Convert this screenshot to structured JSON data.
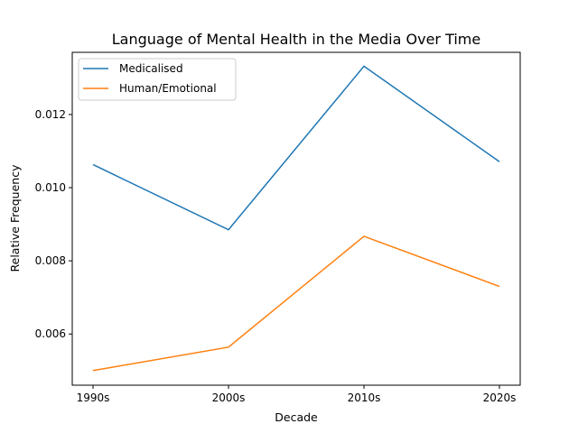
{
  "chart_data": {
    "type": "line",
    "title": "Language of Mental Health in the Media Over Time",
    "xlabel": "Decade",
    "ylabel": "Relative Frequency",
    "categories": [
      "1990s",
      "2000s",
      "2010s",
      "2020s"
    ],
    "ylim": [
      0.0046,
      0.0137
    ],
    "yticks": [
      0.006,
      0.008,
      0.01,
      0.012
    ],
    "ytick_labels": [
      "0.006",
      "0.008",
      "0.010",
      "0.012"
    ],
    "grid": false,
    "legend_position": "top-left",
    "series": [
      {
        "name": "Medicalised",
        "color": "#1f77b4",
        "values": [
          0.01063,
          0.00885,
          0.01332,
          0.01071
        ]
      },
      {
        "name": "Human/Emotional",
        "color": "#ff7f0e",
        "values": [
          0.005,
          0.00564,
          0.00867,
          0.0073
        ]
      }
    ]
  }
}
